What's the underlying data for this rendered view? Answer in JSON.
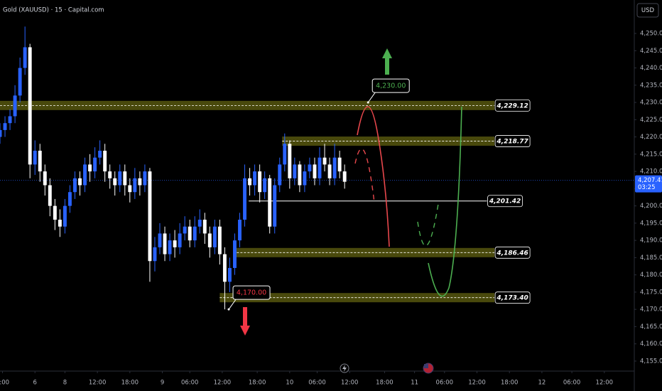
{
  "chart_data": {
    "type": "candlestick",
    "title": "Gold (XAUUSD) · 15 · Capital.com",
    "currency": "USD",
    "xlim": [
      0,
      127
    ],
    "ylim": [
      4152.1,
      4259.7
    ],
    "xticks": [
      {
        "value": 0.5,
        "label": "8:00"
      },
      {
        "value": 7,
        "label": "6"
      },
      {
        "value": 13,
        "label": "8"
      },
      {
        "value": 19.5,
        "label": "12:00"
      },
      {
        "value": 26,
        "label": "18:00"
      },
      {
        "value": 32.5,
        "label": "9"
      },
      {
        "value": 38,
        "label": "06:00"
      },
      {
        "value": 44.5,
        "label": "12:00"
      },
      {
        "value": 51.5,
        "label": "18:00"
      },
      {
        "value": 58,
        "label": "10"
      },
      {
        "value": 63.5,
        "label": "06:00"
      },
      {
        "value": 70,
        "label": "12:00"
      },
      {
        "value": 77,
        "label": "18:00"
      },
      {
        "value": 83,
        "label": "11"
      },
      {
        "value": 89,
        "label": "06:00"
      },
      {
        "value": 95.5,
        "label": "12:00"
      },
      {
        "value": 102,
        "label": "18:00"
      },
      {
        "value": 108.5,
        "label": "12"
      },
      {
        "value": 114.5,
        "label": "06:00"
      },
      {
        "value": 121,
        "label": "12:00"
      }
    ],
    "yticks": [
      {
        "value": 4250,
        "label": "4,250.00"
      },
      {
        "value": 4245,
        "label": "4,245.00"
      },
      {
        "value": 4240,
        "label": "4,240.00"
      },
      {
        "value": 4235,
        "label": "4,235.00"
      },
      {
        "value": 4230,
        "label": "4,230.00"
      },
      {
        "value": 4225,
        "label": "4,225.00"
      },
      {
        "value": 4220,
        "label": "4,220.00"
      },
      {
        "value": 4215,
        "label": "4,215.00"
      },
      {
        "value": 4210,
        "label": "4,210.00"
      },
      {
        "value": 4205,
        "label": "4,205.00"
      },
      {
        "value": 4200,
        "label": "4,200.00"
      },
      {
        "value": 4195,
        "label": "4,195.00"
      },
      {
        "value": 4190,
        "label": "4,190.00"
      },
      {
        "value": 4185,
        "label": "4,185.00"
      },
      {
        "value": 4180,
        "label": "4,180.00"
      },
      {
        "value": 4175,
        "label": "4,175.00"
      },
      {
        "value": 4170,
        "label": "4,170.00"
      },
      {
        "value": 4165,
        "label": "4,165.00"
      },
      {
        "value": 4160,
        "label": "4,160.00"
      },
      {
        "value": 4155,
        "label": "4,155.00"
      }
    ],
    "up_color": "#2962ff",
    "down_color": "#ffffff",
    "x": [
      0,
      1,
      2,
      3,
      4,
      5,
      6,
      7,
      8,
      9,
      10,
      11,
      12,
      13,
      14,
      15,
      16,
      17,
      18,
      19,
      20,
      21,
      22,
      23,
      24,
      25,
      26,
      27,
      28,
      29,
      30,
      31,
      32,
      33,
      34,
      35,
      36,
      37,
      38,
      39,
      40,
      41,
      42,
      43,
      44,
      45,
      46,
      47,
      48,
      49,
      50,
      51,
      52,
      53,
      54,
      55,
      56,
      57,
      58,
      59,
      60,
      61,
      62,
      63,
      64,
      65,
      66,
      67,
      68,
      69
    ],
    "open": [
      4220,
      4222,
      4224,
      4226,
      4232,
      4240,
      4246,
      4212,
      4216,
      4210,
      4206,
      4200,
      4196,
      4194,
      4200,
      4204,
      4208,
      4206,
      4212,
      4210,
      4214,
      4216,
      4210,
      4208,
      4206,
      4210,
      4206,
      4204,
      4208,
      4206,
      4210,
      4184,
      4188,
      4192,
      4186,
      4190,
      4188,
      4192,
      4194,
      4190,
      4194,
      4196,
      4192,
      4188,
      4194,
      4186,
      4178,
      4182,
      4190,
      4196,
      4208,
      4206,
      4210,
      4204,
      4208,
      4194,
      4206,
      4212,
      4218,
      4208,
      4212,
      4206,
      4210,
      4212,
      4208,
      4214,
      4212,
      4208,
      4214,
      4210
    ],
    "high": [
      4224,
      4226,
      4228,
      4235,
      4243,
      4252,
      4247,
      4219,
      4218,
      4212,
      4208,
      4202,
      4199,
      4202,
      4206,
      4210,
      4210,
      4214,
      4215,
      4217,
      4219,
      4218,
      4212,
      4210,
      4212,
      4212,
      4208,
      4211,
      4210,
      4212,
      4211,
      4191,
      4195,
      4194,
      4192,
      4193,
      4195,
      4197,
      4196,
      4197,
      4199,
      4198,
      4194,
      4196,
      4196,
      4188,
      4185,
      4192,
      4198,
      4212,
      4211,
      4212,
      4212,
      4210,
      4209,
      4208,
      4214,
      4221,
      4219,
      4214,
      4213,
      4212,
      4214,
      4214,
      4217,
      4218,
      4214,
      4218,
      4216,
      4212
    ],
    "low": [
      4218,
      4220,
      4222,
      4224,
      4230,
      4238,
      4208,
      4209,
      4207,
      4203,
      4197,
      4193,
      4191,
      4192,
      4198,
      4202,
      4203,
      4204,
      4207,
      4208,
      4212,
      4207,
      4205,
      4203,
      4204,
      4203,
      4201,
      4202,
      4203,
      4204,
      4178,
      4181,
      4186,
      4184,
      4184,
      4185,
      4186,
      4190,
      4188,
      4188,
      4192,
      4189,
      4185,
      4186,
      4183,
      4170,
      4175,
      4180,
      4188,
      4194,
      4203,
      4203,
      4201,
      4202,
      4192,
      4192,
      4204,
      4210,
      4205,
      4206,
      4204,
      4204,
      4208,
      4206,
      4206,
      4210,
      4206,
      4206,
      4208,
      4205
    ],
    "close": [
      4222,
      4224,
      4226,
      4232,
      4240,
      4246,
      4212,
      4216,
      4210,
      4206,
      4200,
      4196,
      4194,
      4200,
      4204,
      4208,
      4206,
      4212,
      4210,
      4214,
      4216,
      4210,
      4208,
      4206,
      4210,
      4206,
      4204,
      4208,
      4206,
      4210,
      4184,
      4188,
      4192,
      4186,
      4190,
      4188,
      4192,
      4194,
      4190,
      4194,
      4196,
      4192,
      4188,
      4194,
      4186,
      4178,
      4182,
      4190,
      4196,
      4208,
      4206,
      4210,
      4204,
      4208,
      4194,
      4206,
      4212,
      4218,
      4208,
      4212,
      4206,
      4210,
      4212,
      4208,
      4214,
      4212,
      4208,
      4214,
      4210,
      4207
    ],
    "last_price": {
      "value": 4207.41,
      "label": "4,207.41"
    },
    "countdown": "03:25",
    "levels": [
      {
        "value": 4229.12,
        "label": "4,229.12",
        "style": "zone",
        "from": 0,
        "to": 99
      },
      {
        "value": 4218.77,
        "label": "4,218.77",
        "style": "zone",
        "from": 56.5,
        "to": 99
      },
      {
        "value": 4201.42,
        "label": "4,201.42",
        "style": "line",
        "from": 49.8,
        "to": 97.5
      },
      {
        "value": 4186.46,
        "label": "4,186.46",
        "style": "zone",
        "from": 46.7,
        "to": 99
      },
      {
        "value": 4173.4,
        "label": "4,173.40",
        "style": "zone",
        "from": 44,
        "to": 99
      }
    ],
    "callouts": [
      {
        "x": 73.7,
        "value": 4230,
        "label": "4,230.00",
        "color": "#4caf50"
      },
      {
        "x": 45.8,
        "value": 4170,
        "label": "4,170.00",
        "color": "#f23645"
      }
    ]
  }
}
